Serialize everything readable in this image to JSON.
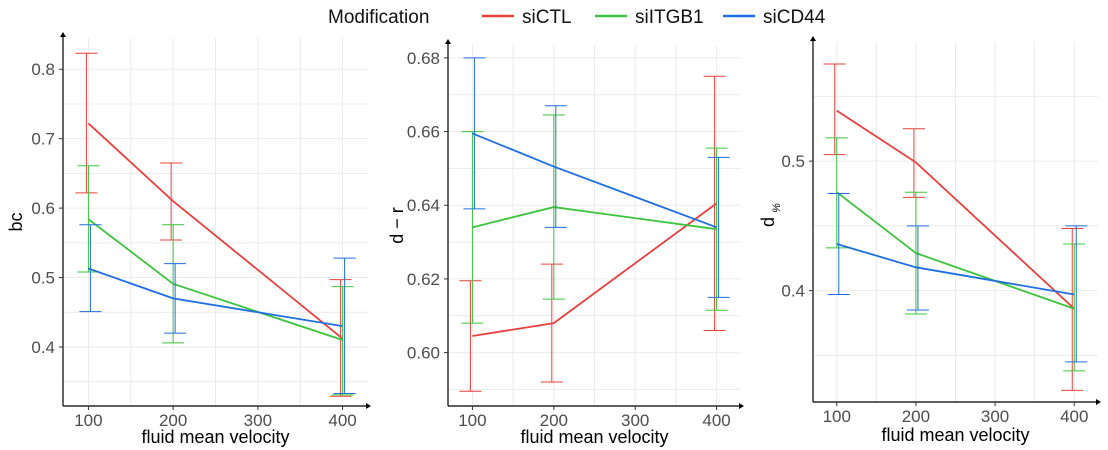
{
  "legend": {
    "title": "Modification",
    "placement": "top-center",
    "entries": [
      {
        "name": "siCTL",
        "color": "#e8403c"
      },
      {
        "name": "siITGB1",
        "color": "#3cc43c"
      },
      {
        "name": "siCD44",
        "color": "#1f6fe0"
      }
    ]
  },
  "chart_data": [
    {
      "type": "line",
      "title": "",
      "xlabel": "fluid mean velocity",
      "ylabel": "bc",
      "x": [
        100,
        200,
        400
      ],
      "xlim": [
        70,
        430
      ],
      "ylim": [
        0.315,
        0.845
      ],
      "xticks": [
        "100",
        "200",
        "300",
        "400"
      ],
      "yticks": [
        "0.4",
        "0.5",
        "0.6",
        "0.7",
        "0.8"
      ],
      "grid": true,
      "series": [
        {
          "name": "siCTL",
          "color": "#e8403c",
          "values": [
            0.722,
            0.61,
            0.412
          ],
          "lower": [
            0.622,
            0.554,
            0.329
          ],
          "upper": [
            0.823,
            0.665,
            0.497
          ]
        },
        {
          "name": "siITGB1",
          "color": "#3cc43c",
          "values": [
            0.584,
            0.491,
            0.41
          ],
          "lower": [
            0.508,
            0.406,
            0.331
          ],
          "upper": [
            0.661,
            0.576,
            0.487
          ]
        },
        {
          "name": "siCD44",
          "color": "#1f6fe0",
          "values": [
            0.513,
            0.47,
            0.43
          ],
          "lower": [
            0.451,
            0.42,
            0.333
          ],
          "upper": [
            0.576,
            0.52,
            0.528
          ]
        }
      ]
    },
    {
      "type": "line",
      "title": "",
      "xlabel": "fluid mean velocity",
      "ylabel": "d − r",
      "x": [
        100,
        200,
        400
      ],
      "xlim": [
        70,
        430
      ],
      "ylim": [
        0.5855,
        0.6835
      ],
      "xticks": [
        "100",
        "200",
        "300",
        "400"
      ],
      "yticks": [
        "0.60",
        "0.62",
        "0.64",
        "0.66",
        "0.68"
      ],
      "grid": true,
      "series": [
        {
          "name": "siCTL",
          "color": "#e8403c",
          "values": [
            0.6045,
            0.608,
            0.6405
          ],
          "lower": [
            0.5895,
            0.592,
            0.606
          ],
          "upper": [
            0.6195,
            0.624,
            0.675
          ]
        },
        {
          "name": "siITGB1",
          "color": "#3cc43c",
          "values": [
            0.634,
            0.6395,
            0.6335
          ],
          "lower": [
            0.608,
            0.6145,
            0.6115
          ],
          "upper": [
            0.66,
            0.6645,
            0.6555
          ]
        },
        {
          "name": "siCD44",
          "color": "#1f6fe0",
          "values": [
            0.6595,
            0.6505,
            0.634
          ],
          "lower": [
            0.639,
            0.634,
            0.615
          ],
          "upper": [
            0.68,
            0.667,
            0.653
          ]
        }
      ]
    },
    {
      "type": "line",
      "title": "",
      "xlabel": "fluid mean velocity",
      "ylabel": "d",
      "ylabel_subscript": "%",
      "x": [
        100,
        200,
        400
      ],
      "xlim": [
        70,
        430
      ],
      "ylim": [
        0.314,
        0.592
      ],
      "xticks": [
        "100",
        "200",
        "300",
        "400"
      ],
      "yticks": [
        "0.4",
        "0.5"
      ],
      "grid": true,
      "series": [
        {
          "name": "siCTL",
          "color": "#e8403c",
          "values": [
            0.539,
            0.499,
            0.386
          ],
          "lower": [
            0.505,
            0.472,
            0.323
          ],
          "upper": [
            0.575,
            0.525,
            0.448
          ]
        },
        {
          "name": "siITGB1",
          "color": "#3cc43c",
          "values": [
            0.476,
            0.429,
            0.386
          ],
          "lower": [
            0.433,
            0.382,
            0.338
          ],
          "upper": [
            0.518,
            0.476,
            0.436
          ]
        },
        {
          "name": "siCD44",
          "color": "#1f6fe0",
          "values": [
            0.436,
            0.418,
            0.397
          ],
          "lower": [
            0.397,
            0.385,
            0.345
          ],
          "upper": [
            0.475,
            0.45,
            0.45
          ]
        }
      ]
    }
  ]
}
